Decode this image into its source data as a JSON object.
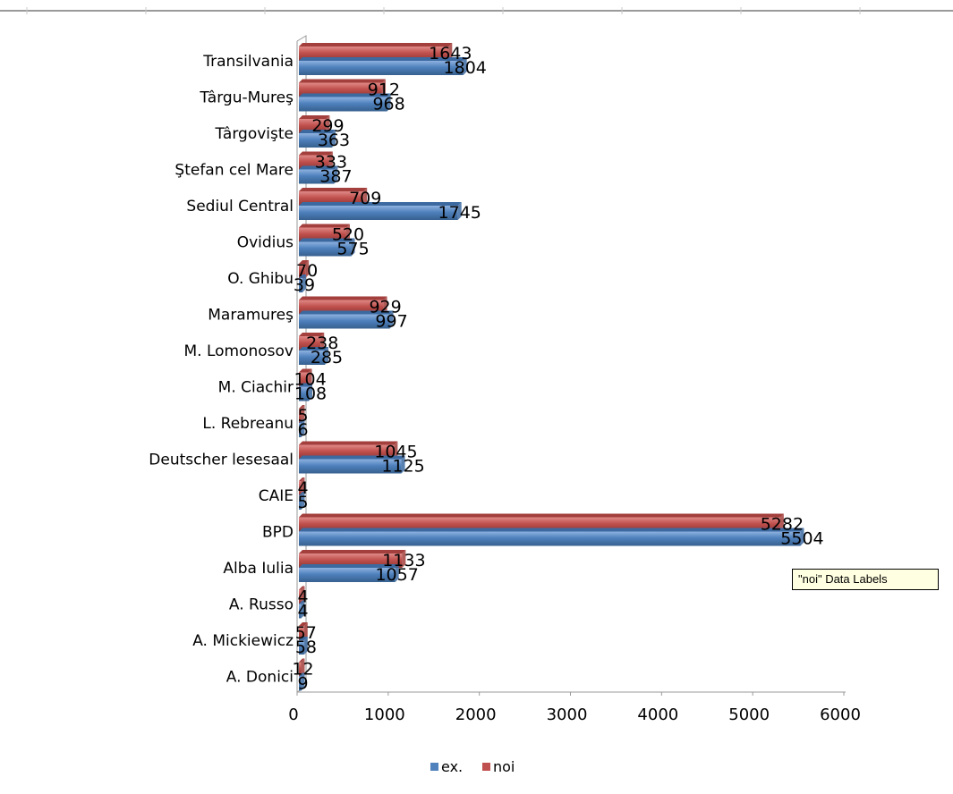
{
  "chart_data": {
    "type": "bar",
    "orientation": "horizontal",
    "categories": [
      "Transilvania",
      "Târgu-Mureş",
      "Târgovişte",
      "Ştefan cel Mare",
      "Sediul Central",
      "Ovidius",
      "O. Ghibu",
      "Maramureş",
      "M. Lomonosov",
      "M. Ciachir",
      "L. Rebreanu",
      "Deutscher lesesaal",
      "CAIE",
      "BPD",
      "Alba Iulia",
      "A. Russo",
      "A. Mickiewicz",
      "A. Donici"
    ],
    "series": [
      {
        "name": "noi",
        "color": "#c0504d",
        "values": [
          1643,
          912,
          299,
          333,
          709,
          520,
          70,
          929,
          238,
          104,
          5,
          1045,
          4,
          5282,
          1133,
          4,
          57,
          12
        ]
      },
      {
        "name": "ex.",
        "color": "#4f81bd",
        "values": [
          1804,
          968,
          363,
          387,
          1745,
          575,
          39,
          997,
          285,
          108,
          6,
          1125,
          5,
          5504,
          1057,
          4,
          58,
          9
        ]
      }
    ],
    "xlim": [
      0,
      6000
    ],
    "ticks": [
      "0",
      "1000",
      "2000",
      "3000",
      "4000",
      "5000",
      "6000"
    ],
    "legend": [
      {
        "name": "ex.",
        "color": "#4f81bd"
      },
      {
        "name": "noi",
        "color": "#c0504d"
      }
    ],
    "legend_position": "bottom",
    "data_labels": true,
    "grid": false
  },
  "tooltip": "\"noi\" Data Labels"
}
